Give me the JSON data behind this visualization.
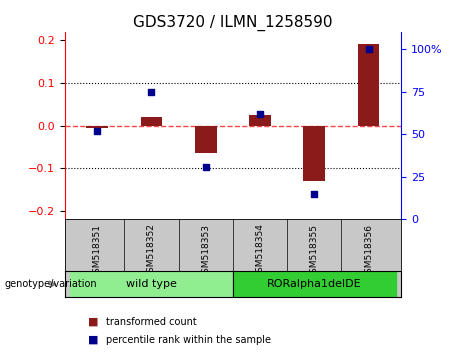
{
  "title": "GDS3720 / ILMN_1258590",
  "samples": [
    "GSM518351",
    "GSM518352",
    "GSM518353",
    "GSM518354",
    "GSM518355",
    "GSM518356"
  ],
  "transformed_count": [
    -0.005,
    0.02,
    -0.065,
    0.025,
    -0.13,
    0.192
  ],
  "percentile_rank": [
    47,
    70,
    26,
    57,
    10,
    95
  ],
  "wt_color": "#90EE90",
  "ror_color": "#32CD32",
  "ylim_left": [
    -0.22,
    0.22
  ],
  "ylim_right": [
    0,
    110
  ],
  "yticks_left": [
    -0.2,
    -0.1,
    0.0,
    0.1,
    0.2
  ],
  "yticks_right": [
    0,
    25,
    50,
    75,
    100
  ],
  "bar_color": "#8B1A1A",
  "dot_color": "#00008B",
  "background_color": "#ffffff",
  "zero_line_color": "#FF4444",
  "legend_red_label": "transformed count",
  "legend_blue_label": "percentile rank within the sample",
  "genotype_label": "genotype/variation",
  "group1_label": "wild type",
  "group2_label": "RORalpha1delDE",
  "sample_bg": "#c8c8c8",
  "bar_width": 0.4
}
